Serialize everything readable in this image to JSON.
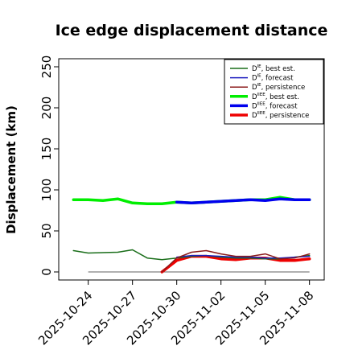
{
  "chart_data": {
    "type": "line",
    "title": "Ice edge displacement distance",
    "ylabel": "Displacement (km)",
    "xlabel": "",
    "ylim": [
      0,
      260
    ],
    "yticks": [
      0,
      50,
      100,
      150,
      200,
      250
    ],
    "xlim": [
      "2025-10-22",
      "2025-11-09"
    ],
    "xticks": [
      {
        "date": "2025-10-24",
        "label": "2025-10-24",
        "color": "#000000"
      },
      {
        "date": "2025-10-27",
        "label": "2025-10-27",
        "color": "#000000"
      },
      {
        "date": "2025-10-30",
        "label": "2025-10-30",
        "color": "#228b22"
      },
      {
        "date": "2025-11-02",
        "label": "2025-11-02",
        "color": "#000000"
      },
      {
        "date": "2025-11-05",
        "label": "2025-11-05",
        "color": "#000000"
      },
      {
        "date": "2025-11-08",
        "label": "2025-11-08",
        "color": "#000000"
      }
    ],
    "grid": false,
    "legend_position": "top-right",
    "reference_line": {
      "y": 0,
      "x_start": "2025-10-24",
      "x_end": "2025-11-08",
      "color": "#808080"
    },
    "series": [
      {
        "name": "D^IE, best est.",
        "legend_main": "D",
        "legend_sup": "IE",
        "legend_rest": ", best est.",
        "color": "#1a6e1a",
        "width": 1.5,
        "x": [
          "2025-10-23",
          "2025-10-24",
          "2025-10-26",
          "2025-10-27",
          "2025-10-28",
          "2025-10-29",
          "2025-10-30",
          "2025-10-31",
          "2025-11-01",
          "2025-11-02",
          "2025-11-03",
          "2025-11-04",
          "2025-11-05",
          "2025-11-06",
          "2025-11-07",
          "2025-11-08"
        ],
        "y": [
          26,
          23,
          24,
          27,
          17,
          15,
          17,
          19,
          20,
          18,
          17,
          17,
          16,
          16,
          18,
          20
        ]
      },
      {
        "name": "D^IE, forecast",
        "legend_main": "D",
        "legend_sup": "IE",
        "legend_rest": ", forecast",
        "color": "#1f1fbf",
        "width": 1.5,
        "x": [
          "2025-10-30",
          "2025-10-31",
          "2025-11-01",
          "2025-11-02",
          "2025-11-03",
          "2025-11-04",
          "2025-11-05",
          "2025-11-06",
          "2025-11-07",
          "2025-11-08"
        ],
        "y": [
          18,
          20,
          20,
          19,
          18,
          18,
          17,
          17,
          18,
          19
        ]
      },
      {
        "name": "D^IE, persistence",
        "legend_main": "D",
        "legend_sup": "IE",
        "legend_rest": ", persistence",
        "color": "#8b1a1a",
        "width": 1.5,
        "x": [
          "2025-10-29",
          "2025-10-30",
          "2025-10-31",
          "2025-11-01",
          "2025-11-02",
          "2025-11-03",
          "2025-11-04",
          "2025-11-05",
          "2025-11-06",
          "2025-11-07",
          "2025-11-08"
        ],
        "y": [
          0,
          17,
          24,
          26,
          22,
          19,
          19,
          22,
          16,
          17,
          22
        ]
      },
      {
        "name": "D^IIEE, best est.",
        "legend_main": "D",
        "legend_sup": "IIEE",
        "legend_rest": ", best est.",
        "color": "#00ee00",
        "width": 3.5,
        "x": [
          "2025-10-23",
          "2025-10-24",
          "2025-10-25",
          "2025-10-26",
          "2025-10-27",
          "2025-10-28",
          "2025-10-29",
          "2025-10-30",
          "2025-10-31",
          "2025-11-01",
          "2025-11-02",
          "2025-11-03",
          "2025-11-04",
          "2025-11-05",
          "2025-11-06",
          "2025-11-07",
          "2025-11-08"
        ],
        "y": [
          88,
          88,
          87,
          89,
          84,
          83,
          83,
          85,
          84,
          85,
          86,
          87,
          88,
          88,
          91,
          88,
          88
        ]
      },
      {
        "name": "D^IIEE, forecast",
        "legend_main": "D",
        "legend_sup": "IIEE",
        "legend_rest": ", forecast",
        "color": "#0000ee",
        "width": 3.5,
        "x": [
          "2025-10-30",
          "2025-10-31",
          "2025-11-01",
          "2025-11-02",
          "2025-11-03",
          "2025-11-04",
          "2025-11-05",
          "2025-11-06",
          "2025-11-07",
          "2025-11-08"
        ],
        "y": [
          85,
          84,
          85,
          86,
          87,
          88,
          87,
          89,
          88,
          88
        ]
      },
      {
        "name": "D^IIEE, persistence",
        "legend_main": "D",
        "legend_sup": "IIEE",
        "legend_rest": ", persistence",
        "color": "#ee0000",
        "width": 3.5,
        "x": [
          "2025-10-29",
          "2025-10-30",
          "2025-10-31",
          "2025-11-01",
          "2025-11-02",
          "2025-11-03",
          "2025-11-04",
          "2025-11-05",
          "2025-11-06",
          "2025-11-07",
          "2025-11-08"
        ],
        "y": [
          0,
          14,
          19,
          19,
          16,
          15,
          17,
          17,
          14,
          14,
          16
        ]
      }
    ]
  }
}
